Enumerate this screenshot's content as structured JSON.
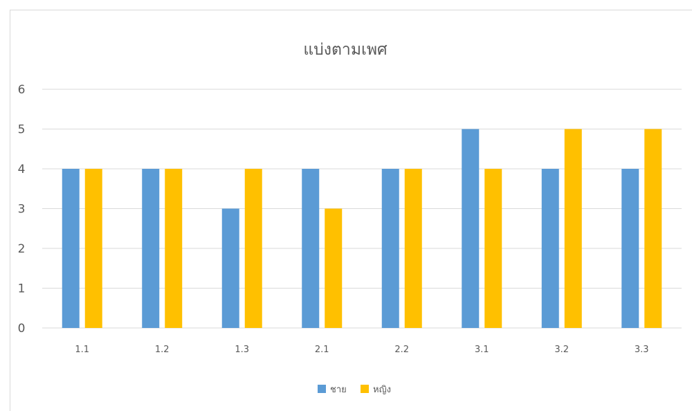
{
  "chart_data": {
    "type": "bar",
    "title": "แบ่งตามเพศ",
    "categories": [
      "1.1",
      "1.2",
      "1.3",
      "2.1",
      "2.2",
      "3.1",
      "3.2",
      "3.3"
    ],
    "series": [
      {
        "name": "ชาย",
        "color": "#5b9bd5",
        "values": [
          4,
          4,
          3,
          4,
          4,
          5,
          4,
          4
        ]
      },
      {
        "name": "หญิง",
        "color": "#ffc000",
        "values": [
          4,
          4,
          4,
          3,
          4,
          4,
          5,
          5
        ]
      }
    ],
    "yticks": [
      "0",
      "1",
      "2",
      "3",
      "4",
      "5",
      "6"
    ],
    "ylim": [
      0,
      6
    ],
    "grid": true,
    "legend_position": "bottom"
  }
}
